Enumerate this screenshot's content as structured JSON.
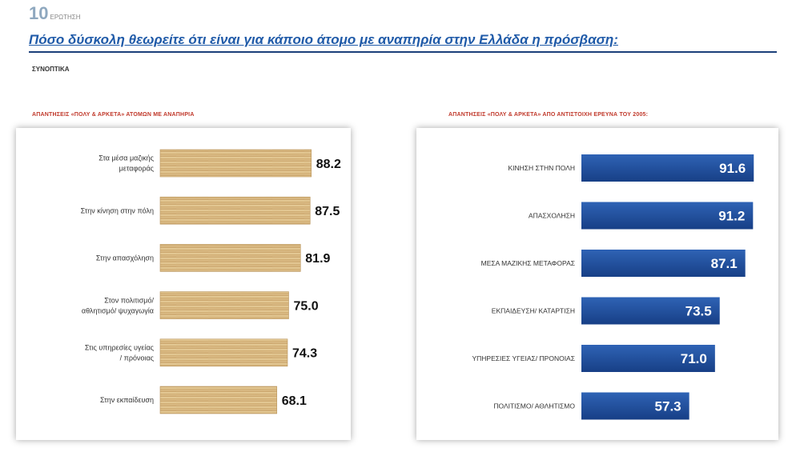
{
  "header": {
    "question_number": "10",
    "question_word": "ΕΡΩΤΗΣΗ",
    "question_text": "Πόσο δύσκολη θεωρείτε ότι είναι για κάποιο άτομο με αναπηρία στην Ελλάδα η πρόσβαση:",
    "subtitle": "ΣΥΝΟΠΤΙΚΑ"
  },
  "colors": {
    "question": "#1f5aa8",
    "rule": "#1b3f7a",
    "panel_title": "#c0392b",
    "left_bar": "#d9b77f",
    "right_bar": "#1f4e9c"
  },
  "chart_data": [
    {
      "type": "bar",
      "orientation": "horizontal",
      "title": "ΑΠΑΝΤΗΣΕΙΣ «ΠΟΛΥ & ΑΡΚΕΤΑ» ΑΤΟΜΩΝ ΜΕ ΑΝΑΠΗΡΙΑ",
      "categories": [
        "Στα μέσα μαζικής μεταφοράς",
        "Στην κίνηση στην πόλη",
        "Στην απασχόληση",
        "Στον πολιτισμό/ αθλητισμό/ ψυχαγωγία",
        "Στις υπηρεσίες υγείας / πρόνοιας",
        "Στην εκπαίδευση"
      ],
      "values": [
        88.2,
        87.5,
        81.9,
        75.0,
        74.3,
        68.1
      ],
      "labels": [
        "88.2",
        "87.5",
        "81.9",
        "75.0",
        "74.3",
        "68.1"
      ],
      "xlim": [
        0,
        100
      ],
      "grid": false
    },
    {
      "type": "bar",
      "orientation": "horizontal",
      "title": "ΑΠΑΝΤΗΣΕΙΣ «ΠΟΛΥ & ΑΡΚΕΤΑ» ΑΠΟ ΑΝΤΙΣΤΟΙΧΗ ΕΡΕΥΝΑ ΤΟΥ 2005:",
      "categories": [
        "ΚΙΝΗΣΗ ΣΤΗΝ ΠΟΛΗ",
        "ΑΠΑΣΧΟΛΗΣΗ",
        "ΜΕΣΑ ΜΑΖΙΚΗΣ ΜΕΤΑΦΟΡΑΣ",
        "ΕΚΠΑΙΔΕΥΣΗ/ ΚΑΤΑΡΤΙΣΗ",
        "ΥΠΗΡΕΣΙΕΣ ΥΓΕΙΑΣ/ ΠΡΟΝΟΙΑΣ",
        "ΠΟΛΙΤΙΣΜΟ/ ΑΘΛΗΤΙΣΜΟ"
      ],
      "values": [
        91.6,
        91.2,
        87.1,
        73.5,
        71.0,
        57.3
      ],
      "labels": [
        "91.6",
        "91.2",
        "87.1",
        "73.5",
        "71.0",
        "57.3"
      ],
      "xlim": [
        0,
        100
      ],
      "grid": false
    }
  ]
}
